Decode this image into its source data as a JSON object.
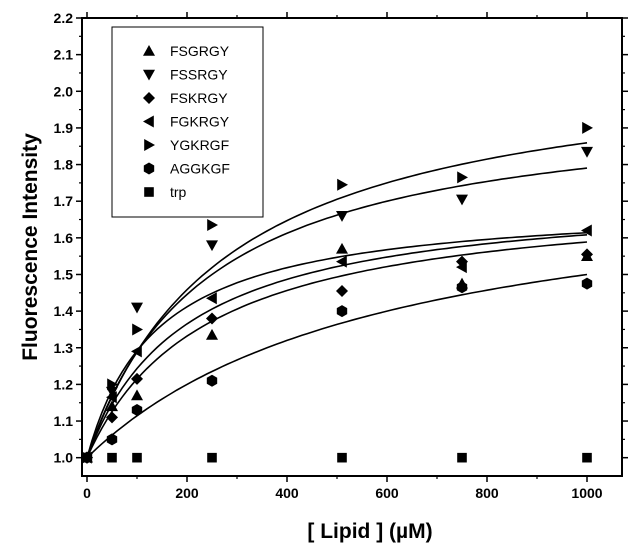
{
  "chart_data": {
    "type": "scatter",
    "xlabel": "[ Lipid ] (µM)",
    "ylabel": "Fluorescence Intensity",
    "xlim": [
      -10,
      1070
    ],
    "ylim": [
      0.95,
      2.2
    ],
    "xticks": [
      0,
      200,
      400,
      600,
      800,
      1000
    ],
    "xtick_labels": [
      "0",
      "200",
      "400",
      "600",
      "800",
      "1000"
    ],
    "yticks": [
      1.0,
      1.1,
      1.2,
      1.3,
      1.4,
      1.5,
      1.6,
      1.7,
      1.8,
      1.9,
      2.0,
      2.1,
      2.2
    ],
    "ytick_labels": [
      "1.0",
      "1.1",
      "1.2",
      "1.3",
      "1.4",
      "1.5",
      "1.6",
      "1.7",
      "1.8",
      "1.9",
      "2.0",
      "2.1",
      "2.2"
    ],
    "grid": false,
    "legend_position": "top-left",
    "series": [
      {
        "name": "FSGRGY",
        "marker": "triangle-up",
        "x": [
          0,
          50,
          100,
          250,
          510,
          750,
          1000
        ],
        "y": [
          1.0,
          1.14,
          1.17,
          1.335,
          1.57,
          1.475,
          1.55
        ],
        "fit": {
          "model": "hyperbolic",
          "bmax": 0.7,
          "kd": 140
        }
      },
      {
        "name": "FSSRGY",
        "marker": "triangle-down",
        "x": [
          0,
          50,
          100,
          250,
          510,
          750,
          1000
        ],
        "y": [
          1.0,
          1.18,
          1.41,
          1.58,
          1.66,
          1.705,
          1.835
        ],
        "fit": {
          "model": "hyperbolic",
          "bmax": 0.98,
          "kd": 240
        }
      },
      {
        "name": "FSKRGY",
        "marker": "diamond",
        "x": [
          0,
          50,
          100,
          250,
          510,
          750,
          1000
        ],
        "y": [
          1.0,
          1.11,
          1.215,
          1.38,
          1.455,
          1.535,
          1.555
        ],
        "fit": {
          "model": "hyperbolic",
          "bmax": 0.73,
          "kd": 240
        }
      },
      {
        "name": "FGKRGY",
        "marker": "triangle-left",
        "x": [
          0,
          50,
          100,
          250,
          510,
          750,
          1000
        ],
        "y": [
          1.0,
          1.165,
          1.29,
          1.435,
          1.535,
          1.52,
          1.62
        ],
        "fit": {
          "model": "hyperbolic",
          "bmax": 0.73,
          "kd": 200
        }
      },
      {
        "name": "YGKRGF",
        "marker": "triangle-right",
        "x": [
          0,
          50,
          100,
          250,
          510,
          750,
          1000
        ],
        "y": [
          1.0,
          1.2,
          1.35,
          1.635,
          1.745,
          1.765,
          1.9
        ],
        "fit": {
          "model": "hyperbolic",
          "bmax": 1.1,
          "kd": 280
        }
      },
      {
        "name": "AGGKGF",
        "marker": "hexagon",
        "x": [
          0,
          50,
          100,
          250,
          510,
          750,
          1000
        ],
        "y": [
          1.0,
          1.05,
          1.13,
          1.21,
          1.4,
          1.465,
          1.475
        ],
        "fit": {
          "model": "hyperbolic",
          "bmax": 0.8,
          "kd": 600
        }
      },
      {
        "name": "trp",
        "marker": "square",
        "x": [
          0,
          50,
          100,
          250,
          510,
          750,
          1000
        ],
        "y": [
          1.0,
          1.0,
          1.0,
          1.0,
          1.0,
          1.0,
          1.0
        ]
      }
    ]
  }
}
